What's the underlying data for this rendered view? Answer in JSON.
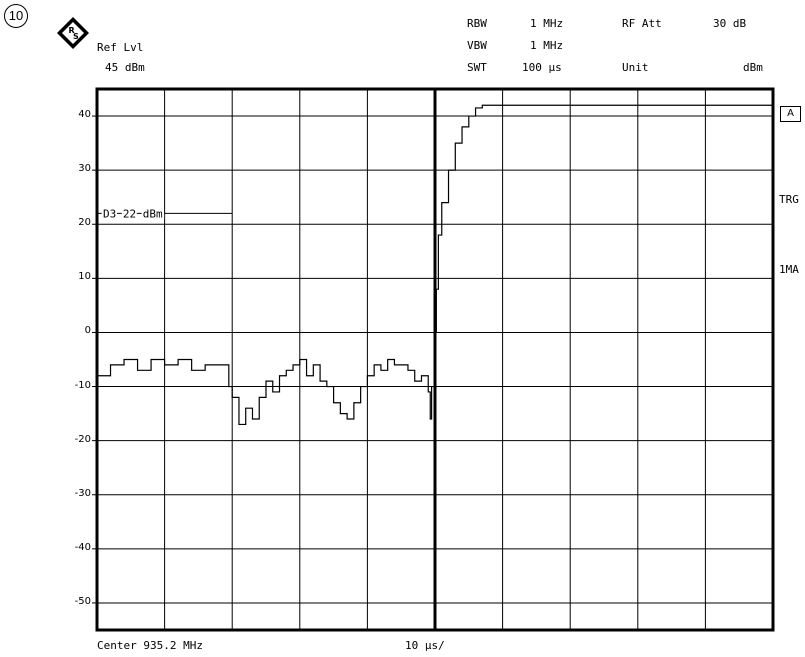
{
  "figure_number": "10",
  "header": {
    "ref_lvl_label": "Ref Lvl",
    "ref_lvl_value": "45 dBm",
    "rbw_label": "RBW",
    "rbw_value": "1 MHz",
    "vbw_label": "VBW",
    "vbw_value": "1 MHz",
    "swt_label": "SWT",
    "swt_value": "100 µs",
    "rf_att_label": "RF Att",
    "rf_att_value": "30 dB",
    "unit_label": "Unit",
    "unit_value": "dBm"
  },
  "side_labels": {
    "a": "A",
    "trg": "TRG",
    "ma": "1MA"
  },
  "footer": {
    "center": "Center 935.2 MHz",
    "div": "10 µs/"
  },
  "chart_data": {
    "type": "line",
    "title": "",
    "xlabel": "",
    "ylabel": "",
    "x_unit": "µs",
    "y_unit": "dBm",
    "xlim": [
      0,
      100
    ],
    "ylim": [
      -55,
      45
    ],
    "yticks": [
      40,
      30,
      20,
      10,
      0,
      -10,
      -20,
      -30,
      -40,
      -50
    ],
    "grid": true,
    "display_line": {
      "label": "D3 22 dBm",
      "value": 22,
      "x_end": 20
    },
    "trigger_x": 50,
    "series": [
      {
        "x": [
          0,
          2,
          4,
          6,
          8,
          10,
          12,
          14,
          16,
          18,
          19.5,
          20,
          21,
          22,
          23,
          24,
          25,
          26,
          27,
          28,
          29,
          30,
          31,
          32,
          33,
          34,
          35,
          36,
          37,
          38,
          39,
          40,
          41,
          42,
          43,
          44,
          45,
          46,
          47,
          48,
          49,
          49.3,
          49.5,
          50,
          50.2,
          50.5,
          51,
          52,
          53,
          54,
          55,
          56,
          57,
          58,
          60,
          64,
          70,
          80,
          90,
          100
        ],
        "y": [
          -8,
          -6,
          -5,
          -7,
          -5,
          -6,
          -5,
          -7,
          -6,
          -6,
          -10,
          -12,
          -17,
          -14,
          -16,
          -12,
          -9,
          -11,
          -8,
          -7,
          -6,
          -5,
          -8,
          -6,
          -9,
          -10,
          -13,
          -15,
          -16,
          -13,
          -10,
          -8,
          -6,
          -7,
          -5,
          -6,
          -6,
          -7,
          -9,
          -8,
          -11,
          -16,
          -10,
          0,
          8,
          18,
          24,
          30,
          35,
          38,
          40,
          41.5,
          42,
          42,
          42,
          42,
          42,
          42,
          42,
          41.8
        ]
      }
    ]
  }
}
